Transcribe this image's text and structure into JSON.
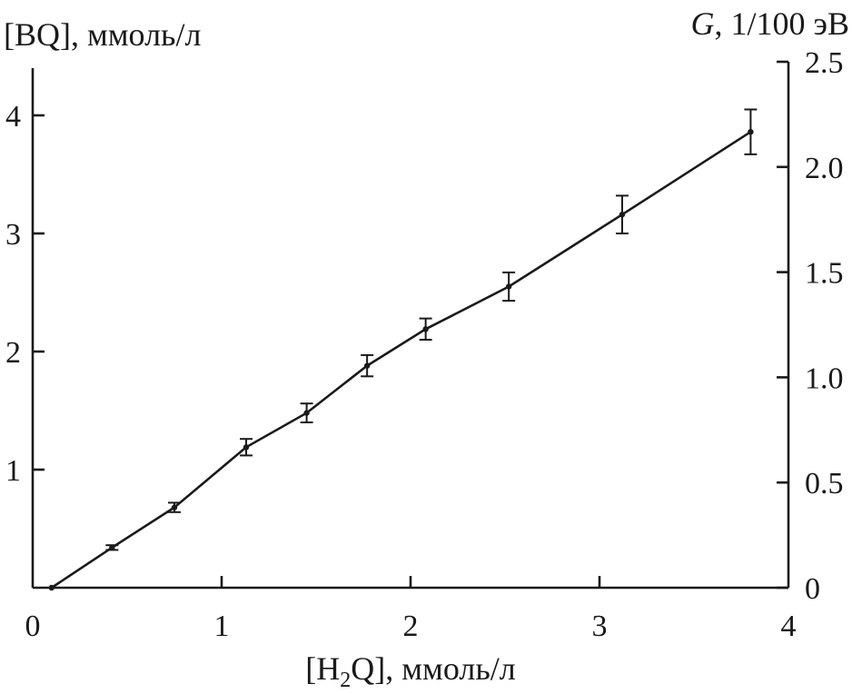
{
  "chart_data": {
    "type": "line",
    "x_title_parts": [
      "[H",
      "2",
      "Q], ммоль/л"
    ],
    "y_left_title": "[BQ], ммоль/л",
    "y_right_title_parts": [
      "G",
      ", 1/100 эВ"
    ],
    "xlim": [
      0,
      4
    ],
    "ylim_left": [
      0,
      4.4
    ],
    "ylim_right": [
      0,
      2.5
    ],
    "x_ticks": [
      0,
      1,
      2,
      3,
      4
    ],
    "x_tick_labels": [
      "0",
      "1",
      "2",
      "3",
      "4"
    ],
    "y_left_ticks": [
      1,
      2,
      3,
      4
    ],
    "y_left_tick_labels": [
      "1",
      "2",
      "3",
      "4"
    ],
    "y_right_ticks": [
      0,
      0.5,
      1.0,
      1.5,
      2.0,
      2.5
    ],
    "y_right_tick_labels": [
      "0",
      "0.5",
      "1.0",
      "1.5",
      "2.0",
      "2.5"
    ],
    "grid": false,
    "series": [
      {
        "x": [
          0.1,
          0.42,
          0.75,
          1.13,
          1.45,
          1.77,
          2.08,
          2.52,
          3.12,
          3.8
        ],
        "y": [
          0.0,
          0.34,
          0.68,
          1.19,
          1.48,
          1.88,
          2.19,
          2.55,
          3.16,
          3.86
        ],
        "err": [
          0.0,
          0.02,
          0.04,
          0.07,
          0.08,
          0.09,
          0.09,
          0.12,
          0.16,
          0.19
        ]
      }
    ]
  }
}
